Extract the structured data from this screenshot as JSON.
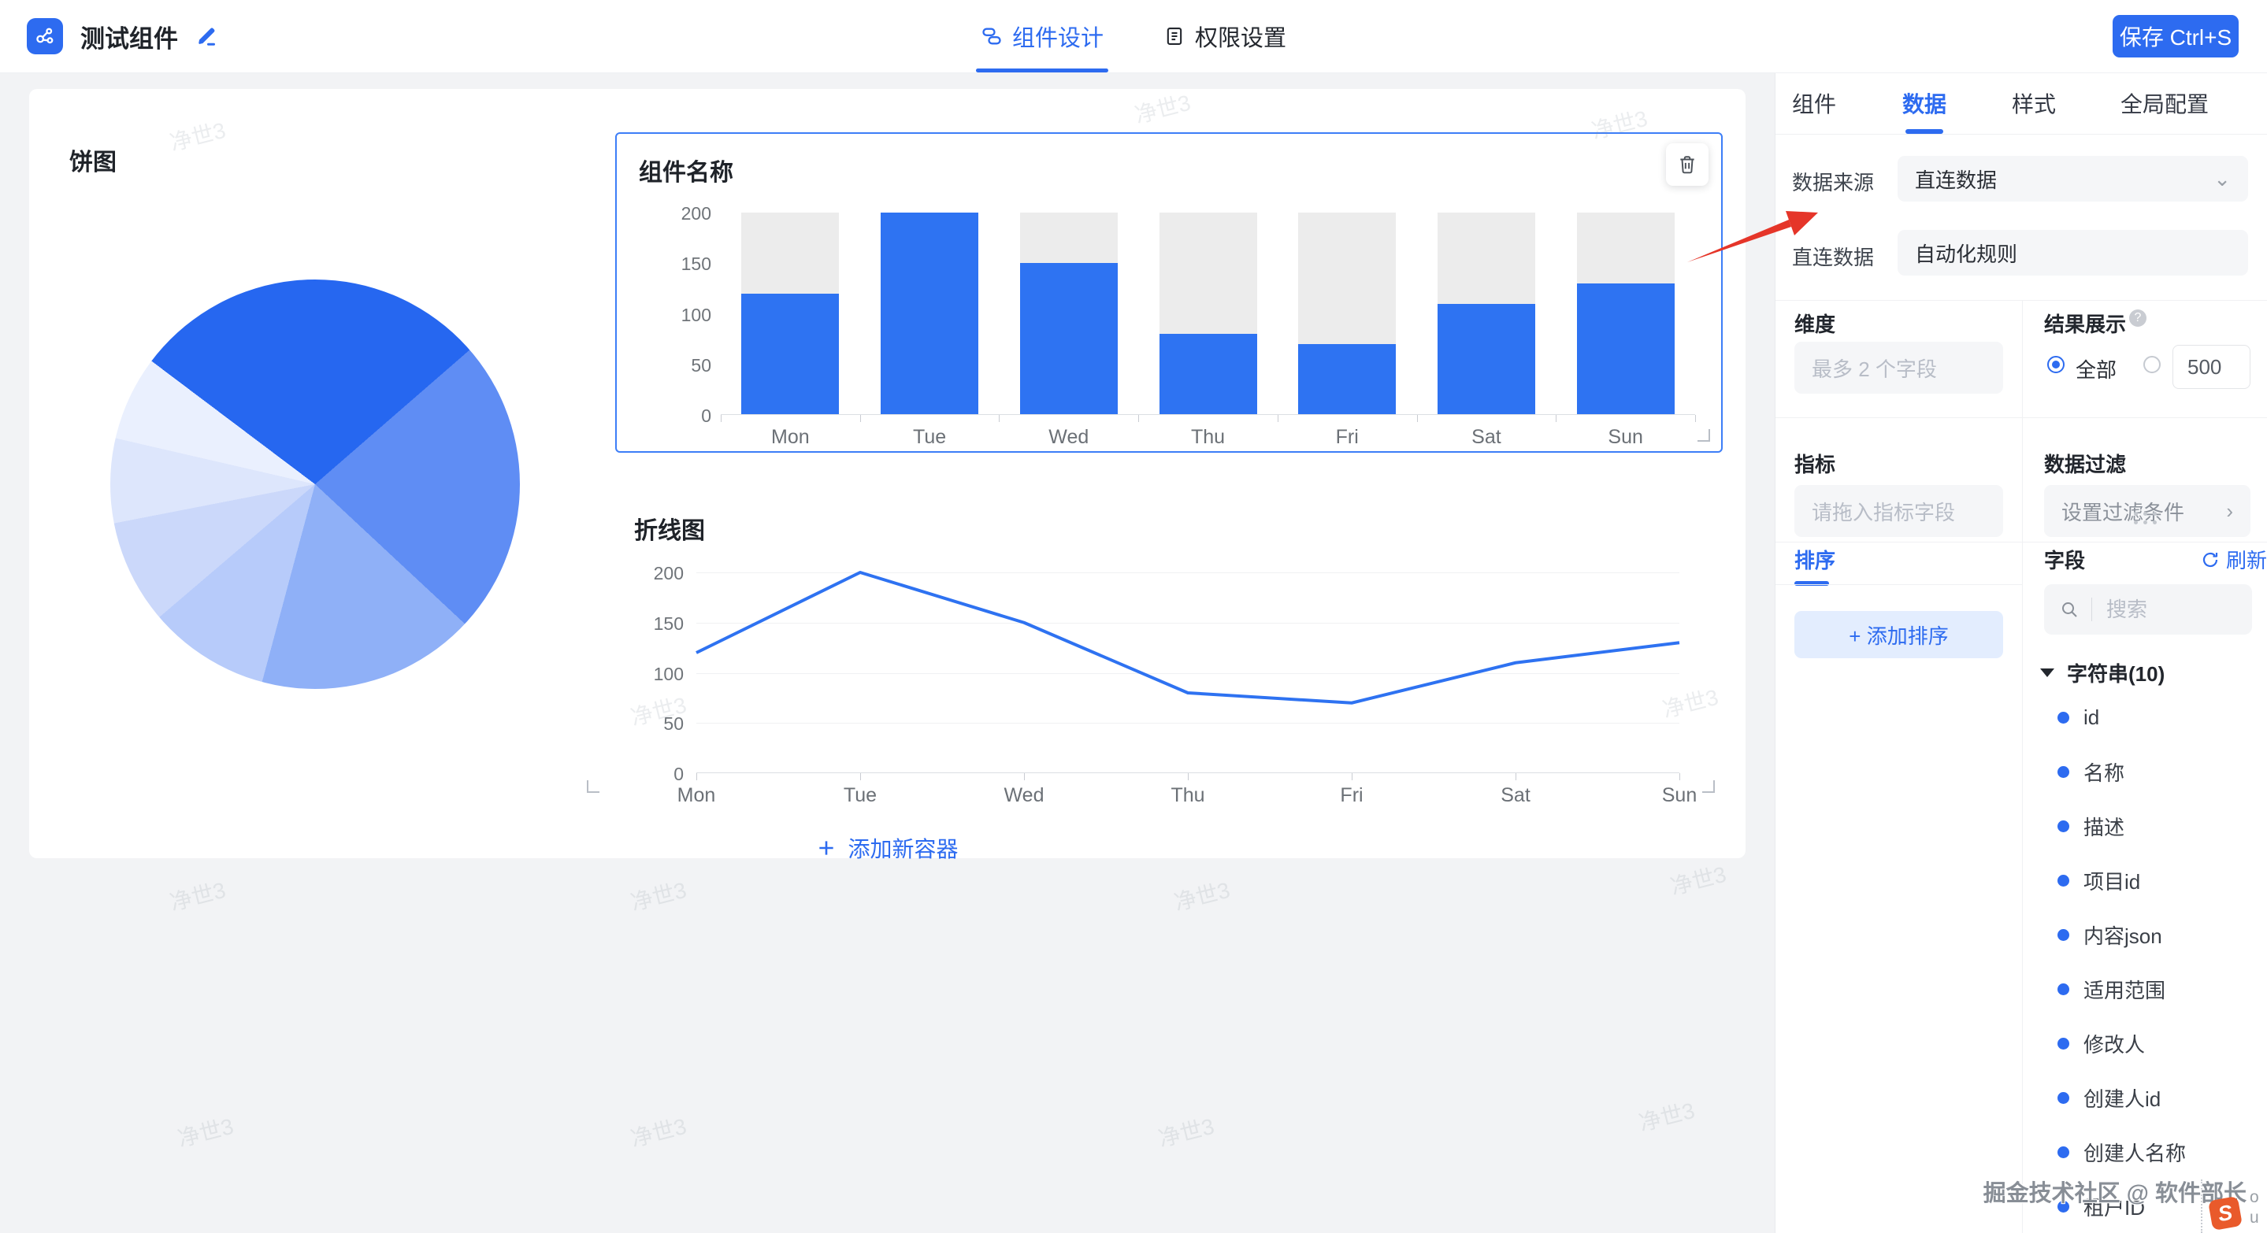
{
  "topbar": {
    "app_title": "测试组件",
    "tabs": [
      {
        "label": "组件设计",
        "icon": "design-icon",
        "active": true
      },
      {
        "label": "权限设置",
        "icon": "permission-icon",
        "active": false
      }
    ],
    "save_label": "保存 Ctrl+S",
    "accent_color": "#2d6bf0"
  },
  "canvas": {
    "pie_title": "饼图",
    "container_title": "组件名称",
    "line_title": "折线图",
    "add_container_label": "添加新容器",
    "background_watermark": "净世3"
  },
  "chart_data": [
    {
      "type": "pie",
      "title": "饼图",
      "start_deg": -53,
      "slices": [
        {
          "deg": 102,
          "pct": 28.3,
          "color": "#2667f0"
        },
        {
          "deg": 84,
          "pct": 23.3,
          "color": "#5f8df4"
        },
        {
          "deg": 62,
          "pct": 17.2,
          "color": "#8fb0f7"
        },
        {
          "deg": 34.5,
          "pct": 9.6,
          "color": "#b7cbfa"
        },
        {
          "deg": 29.5,
          "pct": 8.2,
          "color": "#cbd8fa"
        },
        {
          "deg": 24,
          "pct": 6.7,
          "color": "#dde6fc"
        },
        {
          "deg": 24,
          "pct": 6.7,
          "color": "#eaf0fe"
        }
      ],
      "legend": "none"
    },
    {
      "type": "bar",
      "title": "组件名称",
      "categories": [
        "Mon",
        "Tue",
        "Wed",
        "Thu",
        "Fri",
        "Sat",
        "Sun"
      ],
      "values": [
        120,
        200,
        150,
        80,
        70,
        110,
        130
      ],
      "ylim": [
        0,
        200
      ],
      "yticks": [
        0,
        50,
        100,
        150,
        200
      ],
      "bar_color": "#2e73f2",
      "track_color": "#ececec",
      "track_max": 200,
      "grid": true
    },
    {
      "type": "line",
      "title": "折线图",
      "categories": [
        "Mon",
        "Tue",
        "Wed",
        "Thu",
        "Fri",
        "Sat",
        "Sun"
      ],
      "values": [
        120,
        200,
        150,
        80,
        70,
        110,
        130
      ],
      "ylim": [
        0,
        200
      ],
      "yticks": [
        0,
        50,
        100,
        150,
        200
      ],
      "line_color": "#2e72f1",
      "grid": true,
      "legend": "none"
    }
  ],
  "panel": {
    "tabs": [
      {
        "label": "组件",
        "active": false
      },
      {
        "label": "数据",
        "active": true
      },
      {
        "label": "样式",
        "active": false
      },
      {
        "label": "全局配置",
        "active": false
      }
    ],
    "source_row": {
      "label": "数据来源",
      "value": "直连数据"
    },
    "direct_row": {
      "label": "直连数据",
      "value": "自动化规则"
    },
    "dimension": {
      "label": "维度",
      "placeholder": "最多 2 个字段"
    },
    "result": {
      "label": "结果展示",
      "radio_all_label": "全部",
      "selected": "all",
      "count_value": "500"
    },
    "metric": {
      "label": "指标",
      "placeholder": "请拖入指标字段"
    },
    "filter": {
      "label": "数据过滤",
      "value": "设置过滤条件"
    },
    "sort": {
      "tab_label": "排序",
      "add_button_label": "添加排序"
    },
    "fields": {
      "label": "字段",
      "refresh_label": "刷新",
      "search_placeholder": "搜索",
      "group_label": "字符串(10)",
      "items": [
        "id",
        "名称",
        "描述",
        "项目id",
        "内容json",
        "适用范围",
        "修改人",
        "创建人id",
        "创建人名称",
        "租户ID"
      ]
    }
  },
  "overlay": {
    "watermark_text": "掘金技术社区 @ 软件部长",
    "badge_letter": "S",
    "side_letters": [
      "o",
      "u"
    ]
  }
}
